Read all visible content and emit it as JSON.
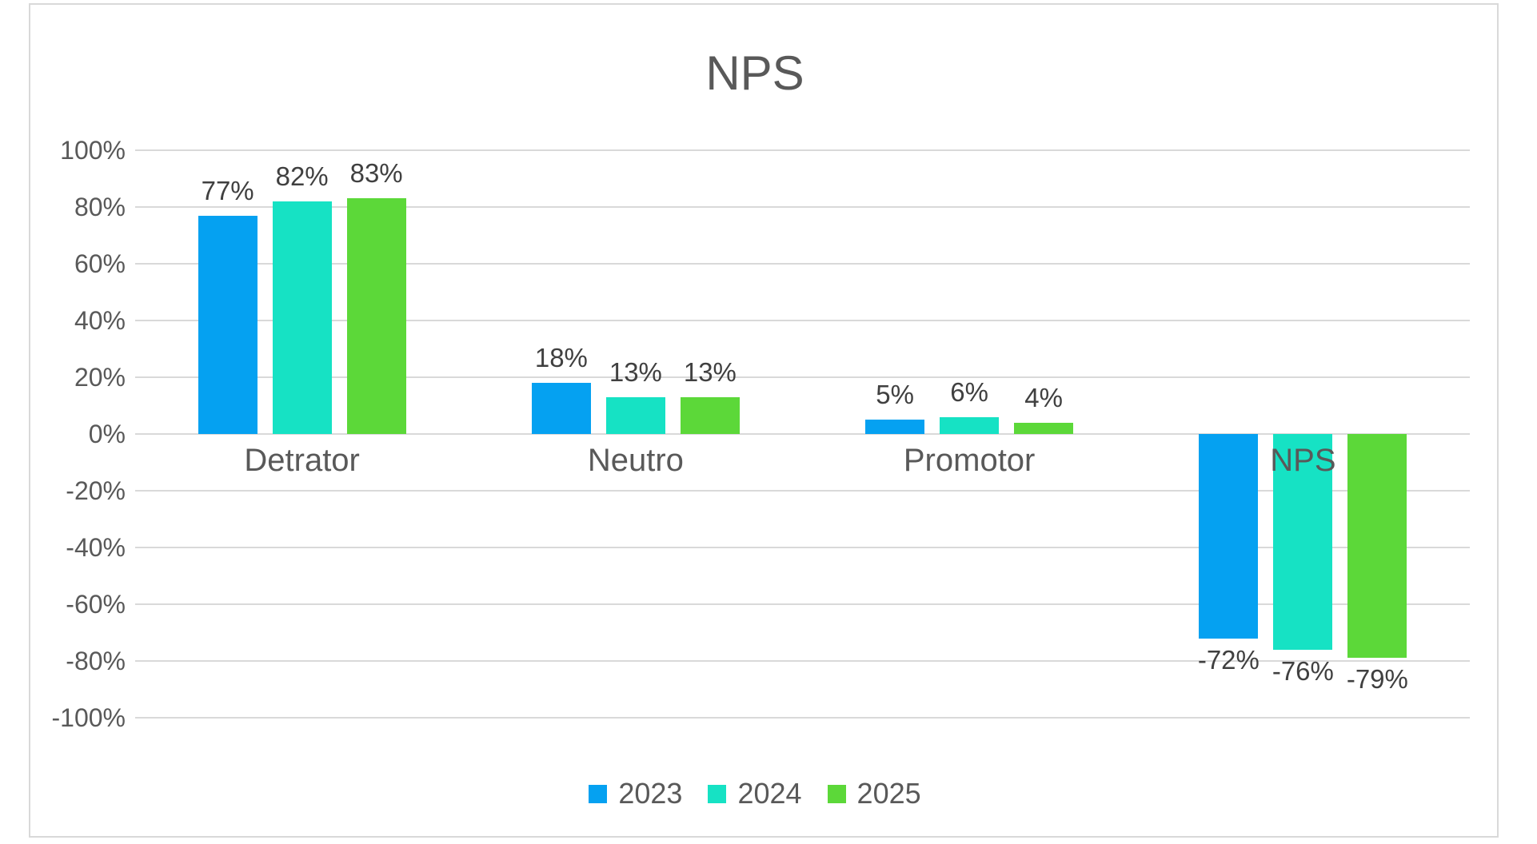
{
  "title": "NPS",
  "chart_data": {
    "type": "bar",
    "title": "NPS",
    "categories": [
      "Detrator",
      "Neutro",
      "Promotor",
      "NPS"
    ],
    "series": [
      {
        "name": "2023",
        "color": "#05A1F1",
        "values": [
          77,
          18,
          5,
          -72
        ]
      },
      {
        "name": "2024",
        "color": "#16E2C4",
        "values": [
          82,
          13,
          6,
          -76
        ]
      },
      {
        "name": "2025",
        "color": "#5CD839",
        "values": [
          83,
          13,
          4,
          -79
        ]
      }
    ],
    "data_labels": [
      [
        "77%",
        "18%",
        "5%",
        "-72%"
      ],
      [
        "82%",
        "13%",
        "6%",
        "-76%"
      ],
      [
        "83%",
        "13%",
        "4%",
        "-79%"
      ]
    ],
    "ylim": [
      -100,
      100
    ],
    "ytick_step": 20,
    "ytick_labels": [
      "100%",
      "80%",
      "60%",
      "40%",
      "20%",
      "0%",
      "-20%",
      "-40%",
      "-60%",
      "-80%",
      "-100%"
    ],
    "grid": true,
    "legend_position": "bottom",
    "legend": [
      "2023",
      "2024",
      "2025"
    ],
    "colors": {
      "text": "#595959",
      "gridline": "#D9D9D9",
      "border": "#D9D9D9",
      "background": "#FFFFFF"
    }
  }
}
